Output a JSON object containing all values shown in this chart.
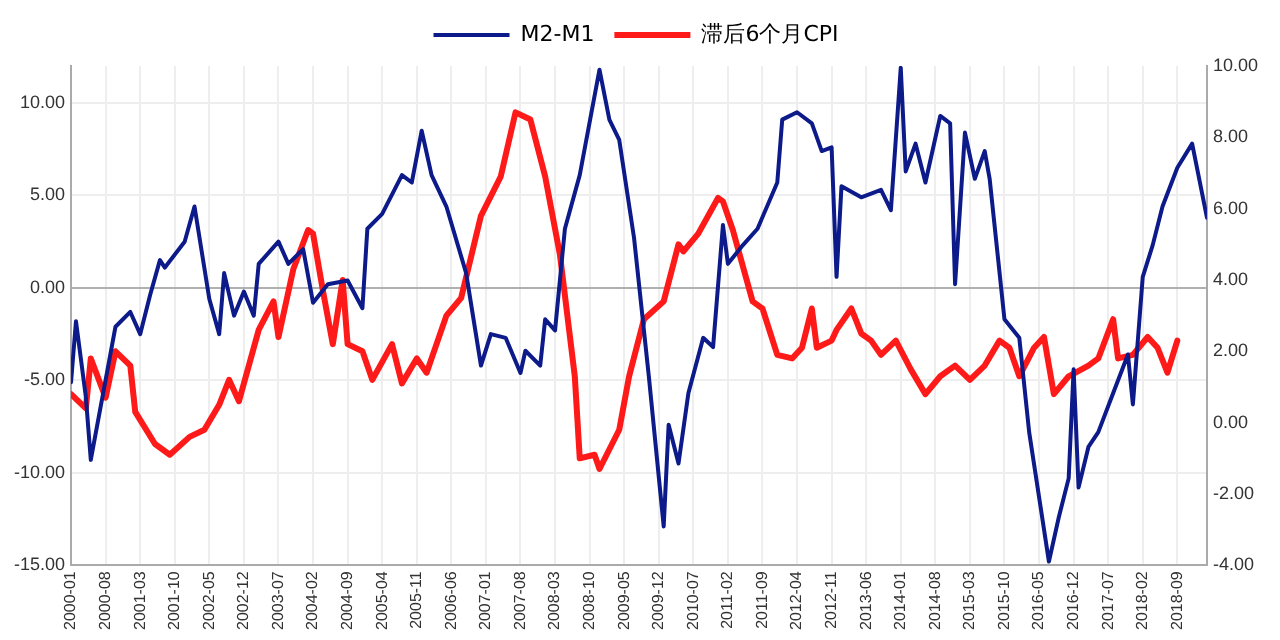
{
  "chart_data": {
    "type": "line",
    "legend": "top",
    "grid": true,
    "marker": "none",
    "line_style": "solid",
    "xlim": [
      "2000-01",
      "2019-03"
    ],
    "xticks": [
      "2000-01",
      "2000-08",
      "2001-03",
      "2001-10",
      "2002-05",
      "2002-12",
      "2003-07",
      "2004-02",
      "2004-09",
      "2005-04",
      "2005-11",
      "2006-06",
      "2007-01",
      "2007-08",
      "2008-03",
      "2008-10",
      "2009-05",
      "2009-12",
      "2010-07",
      "2011-02",
      "2011-09",
      "2012-04",
      "2012-11",
      "2013-06",
      "2014-01",
      "2014-08",
      "2015-03",
      "2015-10",
      "2016-05",
      "2016-12",
      "2017-07",
      "2018-02",
      "2018-09"
    ],
    "ylim": [
      -15,
      12
    ],
    "yticks": [
      {
        "value": -15,
        "label": "-15.00"
      },
      {
        "value": -10,
        "label": "-10.00"
      },
      {
        "value": -5,
        "label": "-5.00"
      },
      {
        "value": 0,
        "label": "0.00"
      },
      {
        "value": 5,
        "label": "5.00"
      },
      {
        "value": 10,
        "label": "10.00"
      }
    ],
    "y2lim": [
      -4,
      10
    ],
    "y2ticks": [
      {
        "value": -4,
        "label": "-4.00"
      },
      {
        "value": -2,
        "label": "-2.00"
      },
      {
        "value": 0,
        "label": "0.00"
      },
      {
        "value": 2,
        "label": "2.00"
      },
      {
        "value": 4,
        "label": "4.00"
      },
      {
        "value": 6,
        "label": "6.00"
      },
      {
        "value": 8,
        "label": "8.00"
      },
      {
        "value": 10,
        "label": "10.00"
      }
    ],
    "series": [
      {
        "name": "M2-M1",
        "color": "#0d1a8a",
        "x": [
          "2000-01",
          "2000-02",
          "2000-04",
          "2000-05",
          "2000-10",
          "2001-01",
          "2001-03",
          "2001-05",
          "2001-07",
          "2001-08",
          "2001-12",
          "2002-02",
          "2002-05",
          "2002-07",
          "2002-08",
          "2002-10",
          "2002-12",
          "2003-02",
          "2003-03",
          "2003-07",
          "2003-09",
          "2003-12",
          "2004-02",
          "2004-05",
          "2004-09",
          "2004-12",
          "2005-01",
          "2005-04",
          "2005-08",
          "2005-10",
          "2005-12",
          "2006-02",
          "2006-05",
          "2006-09",
          "2006-12",
          "2007-02",
          "2007-05",
          "2007-08",
          "2007-09",
          "2007-12",
          "2008-01",
          "2008-03",
          "2008-05",
          "2008-08",
          "2008-12",
          "2009-02",
          "2009-04",
          "2009-07",
          "2009-10",
          "2010-01",
          "2010-02",
          "2010-04",
          "2010-06",
          "2010-09",
          "2010-11",
          "2011-01",
          "2011-02",
          "2011-05",
          "2011-08",
          "2011-12",
          "2012-01",
          "2012-04",
          "2012-07",
          "2012-09",
          "2012-11",
          "2012-12",
          "2013-01",
          "2013-05",
          "2013-09",
          "2013-11",
          "2014-01",
          "2014-02",
          "2014-04",
          "2014-06",
          "2014-09",
          "2014-11",
          "2014-12",
          "2015-02",
          "2015-04",
          "2015-06",
          "2015-07",
          "2015-10",
          "2016-01",
          "2016-03",
          "2016-07",
          "2016-09",
          "2016-11",
          "2016-12",
          "2017-01",
          "2017-03",
          "2017-05",
          "2017-08",
          "2017-11",
          "2017-12",
          "2018-02",
          "2018-04",
          "2018-06",
          "2018-09",
          "2018-12",
          "2019-03"
        ],
        "values": [
          -5.1,
          -1.8,
          -5.9,
          -9.3,
          -2.1,
          -1.3,
          -2.5,
          -0.4,
          1.5,
          1.1,
          2.5,
          4.4,
          -0.6,
          -2.5,
          0.8,
          -1.5,
          -0.2,
          -1.5,
          1.3,
          2.5,
          1.3,
          2.1,
          -0.8,
          0.2,
          0.4,
          -1.1,
          3.2,
          4.0,
          6.1,
          5.7,
          8.5,
          6.1,
          4.4,
          0.8,
          -4.2,
          -2.5,
          -2.7,
          -4.6,
          -3.4,
          -4.2,
          -1.7,
          -2.3,
          3.2,
          6.1,
          11.8,
          9.1,
          8.0,
          2.7,
          -4.8,
          -12.9,
          -7.4,
          -9.5,
          -5.7,
          -2.7,
          -3.2,
          3.4,
          1.3,
          2.3,
          3.2,
          5.7,
          9.1,
          9.5,
          8.9,
          7.4,
          7.6,
          0.6,
          5.5,
          4.9,
          5.3,
          4.2,
          11.9,
          6.3,
          7.8,
          5.7,
          9.3,
          8.9,
          0.2,
          8.4,
          5.9,
          7.4,
          5.9,
          -1.7,
          -2.7,
          -7.8,
          -14.8,
          -12.4,
          -10.3,
          -4.4,
          -10.8,
          -8.6,
          -7.8,
          -5.7,
          -3.6,
          -6.3,
          0.6,
          2.3,
          4.4,
          6.5,
          7.8,
          3.8
        ]
      },
      {
        "name": "滞后6个月CPI",
        "color": "#ff1a1a",
        "axis": "y2",
        "x": [
          "2000-01",
          "2000-04",
          "2000-05",
          "2000-08",
          "2000-10",
          "2001-01",
          "2001-02",
          "2001-06",
          "2001-09",
          "2002-01",
          "2002-04",
          "2002-07",
          "2002-09",
          "2002-11",
          "2003-03",
          "2003-06",
          "2003-07",
          "2003-10",
          "2004-01",
          "2004-02",
          "2004-04",
          "2004-06",
          "2004-08",
          "2004-09",
          "2004-12",
          "2005-02",
          "2005-06",
          "2005-08",
          "2005-11",
          "2006-01",
          "2006-05",
          "2006-08",
          "2006-12",
          "2007-04",
          "2007-07",
          "2007-10",
          "2008-01",
          "2008-04",
          "2008-07",
          "2008-08",
          "2008-11",
          "2008-12",
          "2009-04",
          "2009-06",
          "2009-09",
          "2010-01",
          "2010-04",
          "2010-05",
          "2010-08",
          "2010-12",
          "2011-01",
          "2011-03",
          "2011-07",
          "2011-09",
          "2011-12",
          "2012-03",
          "2012-05",
          "2012-07",
          "2012-08",
          "2012-11",
          "2012-12",
          "2013-03",
          "2013-05",
          "2013-07",
          "2013-09",
          "2013-12",
          "2014-03",
          "2014-06",
          "2014-09",
          "2014-12",
          "2015-03",
          "2015-06",
          "2015-09",
          "2015-11",
          "2016-01",
          "2016-04",
          "2016-06",
          "2016-08",
          "2016-11",
          "2017-03",
          "2017-05",
          "2017-08",
          "2017-09",
          "2017-12",
          "2018-03",
          "2018-05",
          "2018-07",
          "2018-09"
        ],
        "values": [
          0.8,
          0.4,
          1.8,
          0.7,
          2.0,
          1.6,
          0.3,
          -0.6,
          -0.9,
          -0.4,
          -0.2,
          0.5,
          1.2,
          0.6,
          2.6,
          3.4,
          2.4,
          4.3,
          5.4,
          5.3,
          3.7,
          2.2,
          4.0,
          2.2,
          2.0,
          1.2,
          2.2,
          1.1,
          1.8,
          1.4,
          3.0,
          3.5,
          5.8,
          6.9,
          8.7,
          8.5,
          6.9,
          4.7,
          1.3,
          -1.0,
          -0.9,
          -1.3,
          -0.2,
          1.3,
          2.9,
          3.4,
          5.0,
          4.8,
          5.3,
          6.3,
          6.2,
          5.4,
          3.4,
          3.2,
          1.9,
          1.8,
          2.1,
          3.2,
          2.1,
          2.3,
          2.6,
          3.2,
          2.5,
          2.3,
          1.9,
          2.3,
          1.5,
          0.8,
          1.3,
          1.6,
          1.2,
          1.6,
          2.3,
          2.1,
          1.3,
          2.1,
          2.4,
          0.8,
          1.3,
          1.6,
          1.8,
          2.9,
          1.8,
          1.9,
          2.4,
          2.1,
          1.4,
          2.3
        ]
      }
    ]
  }
}
